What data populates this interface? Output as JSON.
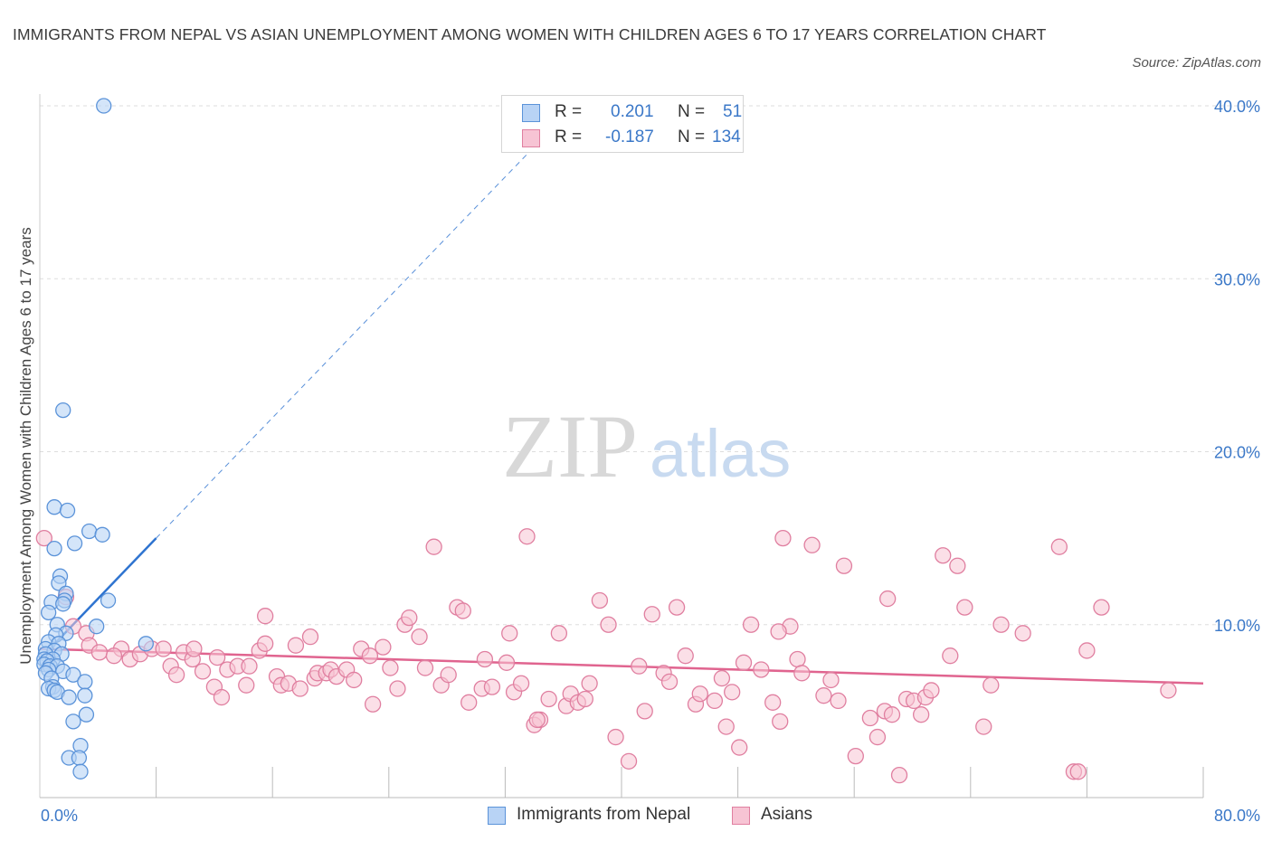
{
  "title": "IMMIGRANTS FROM NEPAL VS ASIAN UNEMPLOYMENT AMONG WOMEN WITH CHILDREN AGES 6 TO 17 YEARS CORRELATION CHART",
  "source": "Source: ZipAtlas.com",
  "watermark": {
    "zip": "ZIP",
    "atlas": "atlas"
  },
  "colors": {
    "nepal_fill": "#b8d3f5",
    "nepal_stroke": "#5b93d9",
    "nepal_line": "#2f74d0",
    "asians_fill": "#f7c4d4",
    "asians_stroke": "#e07fa0",
    "asians_line": "#e0648f",
    "tick_text": "#3b78c8",
    "grid": "#dddddd"
  },
  "legend": {
    "r_label": "R =",
    "n_label": "N =",
    "rows": [
      {
        "series": "Immigrants from Nepal",
        "r": "0.201",
        "n": "51"
      },
      {
        "series": "Asians",
        "r": "-0.187",
        "n": "134"
      }
    ]
  },
  "chart_data": {
    "type": "scatter",
    "title": "IMMIGRANTS FROM NEPAL VS ASIAN UNEMPLOYMENT AMONG WOMEN WITH CHILDREN AGES 6 TO 17 YEARS CORRELATION CHART",
    "xlabel": "",
    "ylabel": "Unemployment Among Women with Children Ages 6 to 17 years",
    "xlim": [
      0,
      80
    ],
    "ylim": [
      0,
      40
    ],
    "x_tick_labels": [
      "0.0%",
      "80.0%"
    ],
    "y_ticks": [
      10,
      20,
      30,
      40
    ],
    "y_tick_labels": [
      "10.0%",
      "20.0%",
      "30.0%",
      "40.0%"
    ],
    "grid": true,
    "legend_position": "top-center",
    "series": [
      {
        "name": "Immigrants from Nepal",
        "r": 0.201,
        "n": 51,
        "trend": {
          "x": [
            0.0,
            8.0
          ],
          "y": [
            8.0,
            15.0
          ],
          "extended_to": [
            35.0,
            38.5
          ]
        },
        "points": [
          [
            4.4,
            40.0
          ],
          [
            1.6,
            22.4
          ],
          [
            1.0,
            16.8
          ],
          [
            1.9,
            16.6
          ],
          [
            3.4,
            15.4
          ],
          [
            4.3,
            15.2
          ],
          [
            2.4,
            14.7
          ],
          [
            1.0,
            14.4
          ],
          [
            1.4,
            12.8
          ],
          [
            1.3,
            12.4
          ],
          [
            1.8,
            11.8
          ],
          [
            1.7,
            11.4
          ],
          [
            0.8,
            11.3
          ],
          [
            4.7,
            11.4
          ],
          [
            1.6,
            11.2
          ],
          [
            0.6,
            10.7
          ],
          [
            1.2,
            10.0
          ],
          [
            3.9,
            9.9
          ],
          [
            1.8,
            9.5
          ],
          [
            1.1,
            9.4
          ],
          [
            7.3,
            8.9
          ],
          [
            0.6,
            9.0
          ],
          [
            1.3,
            8.9
          ],
          [
            0.4,
            8.6
          ],
          [
            1.0,
            8.5
          ],
          [
            0.4,
            8.3
          ],
          [
            1.5,
            8.3
          ],
          [
            0.3,
            8.0
          ],
          [
            0.9,
            8.0
          ],
          [
            0.5,
            7.9
          ],
          [
            0.3,
            7.7
          ],
          [
            0.7,
            7.6
          ],
          [
            1.2,
            7.6
          ],
          [
            0.6,
            7.4
          ],
          [
            0.4,
            7.2
          ],
          [
            1.6,
            7.3
          ],
          [
            2.3,
            7.1
          ],
          [
            0.8,
            6.9
          ],
          [
            3.1,
            6.7
          ],
          [
            0.9,
            6.4
          ],
          [
            0.6,
            6.3
          ],
          [
            1.0,
            6.2
          ],
          [
            1.2,
            6.1
          ],
          [
            2.0,
            5.8
          ],
          [
            3.1,
            5.9
          ],
          [
            3.2,
            4.8
          ],
          [
            2.3,
            4.4
          ],
          [
            2.8,
            3.0
          ],
          [
            2.0,
            2.3
          ],
          [
            2.7,
            2.3
          ],
          [
            2.8,
            1.5
          ]
        ]
      },
      {
        "name": "Asians",
        "r": -0.187,
        "n": 134,
        "trend": {
          "x": [
            0.0,
            80.0
          ],
          "y": [
            8.6,
            6.6
          ]
        },
        "points": [
          [
            0.3,
            15.0
          ],
          [
            1.8,
            11.6
          ],
          [
            2.3,
            9.9
          ],
          [
            3.2,
            9.5
          ],
          [
            3.4,
            8.8
          ],
          [
            4.1,
            8.4
          ],
          [
            5.6,
            8.6
          ],
          [
            5.1,
            8.2
          ],
          [
            6.2,
            8.0
          ],
          [
            6.9,
            8.3
          ],
          [
            7.7,
            8.6
          ],
          [
            8.5,
            8.6
          ],
          [
            9.0,
            7.6
          ],
          [
            9.4,
            7.1
          ],
          [
            9.9,
            8.4
          ],
          [
            10.5,
            8.0
          ],
          [
            10.6,
            8.6
          ],
          [
            11.2,
            7.3
          ],
          [
            12.0,
            6.4
          ],
          [
            12.2,
            8.1
          ],
          [
            12.5,
            5.8
          ],
          [
            12.9,
            7.4
          ],
          [
            13.6,
            7.6
          ],
          [
            14.2,
            6.5
          ],
          [
            14.4,
            7.6
          ],
          [
            15.1,
            8.5
          ],
          [
            15.5,
            8.9
          ],
          [
            15.5,
            10.5
          ],
          [
            16.3,
            7.0
          ],
          [
            16.6,
            6.5
          ],
          [
            17.1,
            6.6
          ],
          [
            17.6,
            8.8
          ],
          [
            17.9,
            6.3
          ],
          [
            18.6,
            9.3
          ],
          [
            18.9,
            6.9
          ],
          [
            19.1,
            7.2
          ],
          [
            19.7,
            7.2
          ],
          [
            20.0,
            7.4
          ],
          [
            20.4,
            7.0
          ],
          [
            21.1,
            7.4
          ],
          [
            21.6,
            6.8
          ],
          [
            22.1,
            8.6
          ],
          [
            22.7,
            8.2
          ],
          [
            22.9,
            5.4
          ],
          [
            23.6,
            8.7
          ],
          [
            24.1,
            7.5
          ],
          [
            24.6,
            6.3
          ],
          [
            25.1,
            10.0
          ],
          [
            25.4,
            10.4
          ],
          [
            26.5,
            7.5
          ],
          [
            27.1,
            14.5
          ],
          [
            27.6,
            6.5
          ],
          [
            28.1,
            7.1
          ],
          [
            28.7,
            11.0
          ],
          [
            29.1,
            10.8
          ],
          [
            29.5,
            5.5
          ],
          [
            30.4,
            6.3
          ],
          [
            30.6,
            8.0
          ],
          [
            31.1,
            6.4
          ],
          [
            32.1,
            7.8
          ],
          [
            32.3,
            9.5
          ],
          [
            32.6,
            6.1
          ],
          [
            33.1,
            6.6
          ],
          [
            33.5,
            15.1
          ],
          [
            34.0,
            4.2
          ],
          [
            34.4,
            4.5
          ],
          [
            35.0,
            5.7
          ],
          [
            35.7,
            9.5
          ],
          [
            36.2,
            5.3
          ],
          [
            36.5,
            6.0
          ],
          [
            37.0,
            5.5
          ],
          [
            37.5,
            5.7
          ],
          [
            37.8,
            6.6
          ],
          [
            38.5,
            11.4
          ],
          [
            39.1,
            10.0
          ],
          [
            39.6,
            3.5
          ],
          [
            40.5,
            2.1
          ],
          [
            41.2,
            7.6
          ],
          [
            41.6,
            5.0
          ],
          [
            42.1,
            10.6
          ],
          [
            42.9,
            7.2
          ],
          [
            43.3,
            6.7
          ],
          [
            43.8,
            11.0
          ],
          [
            44.4,
            8.2
          ],
          [
            45.1,
            5.4
          ],
          [
            45.4,
            6.0
          ],
          [
            46.9,
            6.9
          ],
          [
            47.2,
            4.1
          ],
          [
            47.6,
            6.1
          ],
          [
            48.1,
            2.9
          ],
          [
            48.4,
            7.8
          ],
          [
            48.9,
            10.0
          ],
          [
            49.6,
            7.4
          ],
          [
            50.4,
            5.5
          ],
          [
            50.9,
            4.4
          ],
          [
            51.1,
            15.0
          ],
          [
            51.6,
            9.9
          ],
          [
            52.1,
            8.0
          ],
          [
            52.4,
            7.2
          ],
          [
            53.1,
            14.6
          ],
          [
            53.9,
            5.9
          ],
          [
            54.4,
            6.8
          ],
          [
            54.9,
            5.6
          ],
          [
            55.3,
            13.4
          ],
          [
            56.1,
            2.4
          ],
          [
            57.1,
            4.6
          ],
          [
            57.6,
            3.5
          ],
          [
            58.1,
            5.0
          ],
          [
            58.6,
            4.8
          ],
          [
            59.1,
            1.3
          ],
          [
            59.6,
            5.7
          ],
          [
            60.1,
            5.6
          ],
          [
            60.6,
            4.8
          ],
          [
            60.9,
            5.8
          ],
          [
            61.3,
            6.2
          ],
          [
            62.1,
            14.0
          ],
          [
            62.6,
            8.2
          ],
          [
            63.1,
            13.4
          ],
          [
            63.6,
            11.0
          ],
          [
            64.9,
            4.1
          ],
          [
            65.4,
            6.5
          ],
          [
            66.1,
            10.0
          ],
          [
            67.6,
            9.5
          ],
          [
            70.1,
            14.5
          ],
          [
            71.1,
            1.5
          ],
          [
            71.4,
            1.5
          ],
          [
            72.0,
            8.5
          ],
          [
            73.0,
            11.0
          ],
          [
            58.3,
            11.5
          ],
          [
            50.8,
            9.6
          ],
          [
            46.4,
            5.6
          ],
          [
            77.6,
            6.2
          ],
          [
            26.1,
            9.3
          ],
          [
            34.2,
            4.5
          ]
        ]
      }
    ]
  }
}
